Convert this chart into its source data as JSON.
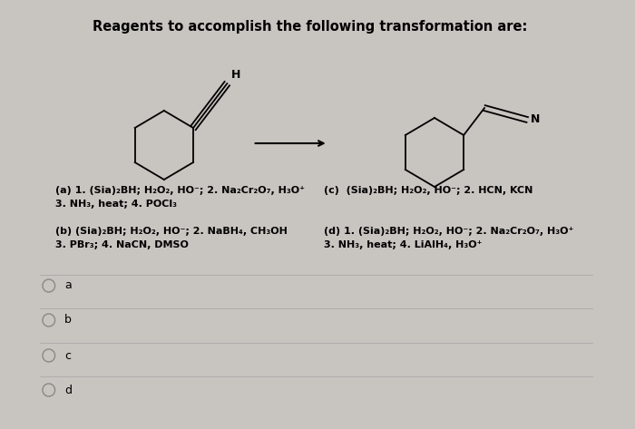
{
  "title": "Reagents to accomplish the following transformation are:",
  "title_fontsize": 10.5,
  "bg_color": "#c8c4c0",
  "text_color": "#000000",
  "option_a_label": "a",
  "option_b_label": "b",
  "option_c_label": "c",
  "option_d_label": "d",
  "text_a_line1": "(a) 1. (Sia)₂BH; H₂O₂, HO⁻; 2. Na₂Cr₂O₇, H₃O⁺",
  "text_a_line2": "3. NH₃, heat; 4. POCl₃",
  "text_b_line1": "(b) (Sia)₂BH; H₂O₂, HO⁻; 2. NaBH₄, CH₃OH",
  "text_b_line2": "3. PBr₃; 4. NaCN, DMSO",
  "text_c_line1": "(c)  (Sia)₂BH; H₂O₂, HO⁻; 2. HCN, KCN",
  "text_d_line1": "(d) 1. (Sia)₂BH; H₂O₂, HO⁻; 2. Na₂Cr₂O₇, H₃O⁺",
  "text_d_line2": "3. NH₃, heat; 4. LiAlH₄, H₃O⁺"
}
